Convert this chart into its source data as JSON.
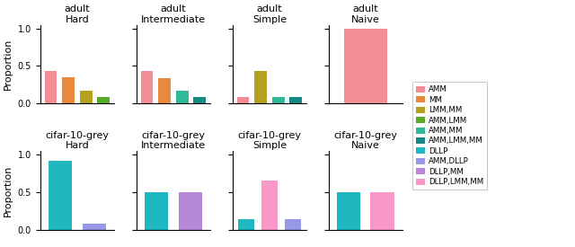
{
  "legend_labels": [
    "AMM",
    "MM",
    "LMM,MM",
    "AMM,LMM",
    "AMM,MM",
    "AMM,LMM,MM",
    "DLLP",
    "AMM,DLLP",
    "DLLP,MM",
    "DLLP,LMM,MM"
  ],
  "colors": {
    "AMM": "#f48c96",
    "MM": "#e8893c",
    "LMM,MM": "#b5a020",
    "AMM,LMM": "#5aaa2a",
    "AMM,MM": "#30b898",
    "AMM,LMM,MM": "#158888",
    "DLLP": "#20b8c0",
    "AMM,DLLP": "#9898e8",
    "DLLP,MM": "#b888d8",
    "DLLP,LMM,MM": "#f898c8"
  },
  "subplot_data": {
    "0_0": [
      [
        "AMM",
        0.43
      ],
      [
        "MM",
        0.35
      ],
      [
        "LMM,MM",
        0.17
      ],
      [
        "AMM,LMM",
        0.09
      ]
    ],
    "0_1": [
      [
        "AMM",
        0.43
      ],
      [
        "MM",
        0.34
      ],
      [
        "AMM,MM",
        0.17
      ],
      [
        "AMM,LMM,MM",
        0.09
      ]
    ],
    "0_2": [
      [
        "AMM",
        0.09
      ],
      [
        "LMM,MM",
        0.43
      ],
      [
        "AMM,MM",
        0.09
      ],
      [
        "AMM,LMM,MM",
        0.09
      ]
    ],
    "0_3": [
      [
        "AMM",
        1.0
      ]
    ],
    "1_0": [
      [
        "DLLP",
        0.92
      ],
      [
        "AMM,DLLP",
        0.08
      ]
    ],
    "1_1": [
      [
        "DLLP",
        0.5
      ],
      [
        "DLLP,MM",
        0.5
      ]
    ],
    "1_2": [
      [
        "DLLP",
        0.14
      ],
      [
        "DLLP,LMM,MM",
        0.65
      ],
      [
        "AMM,DLLP",
        0.14
      ]
    ],
    "1_3": [
      [
        "DLLP",
        0.5
      ],
      [
        "DLLP,LMM,MM",
        0.5
      ]
    ]
  },
  "row_names": [
    "adult",
    "cifar-10-grey"
  ],
  "col_names": [
    "Hard",
    "Intermediate",
    "Simple",
    "Naive"
  ],
  "ylabel": "Proportion",
  "ylim": [
    0.0,
    1.05
  ],
  "yticks": [
    0.0,
    0.5,
    1.0
  ],
  "figsize": [
    6.4,
    2.75
  ],
  "dpi": 100
}
